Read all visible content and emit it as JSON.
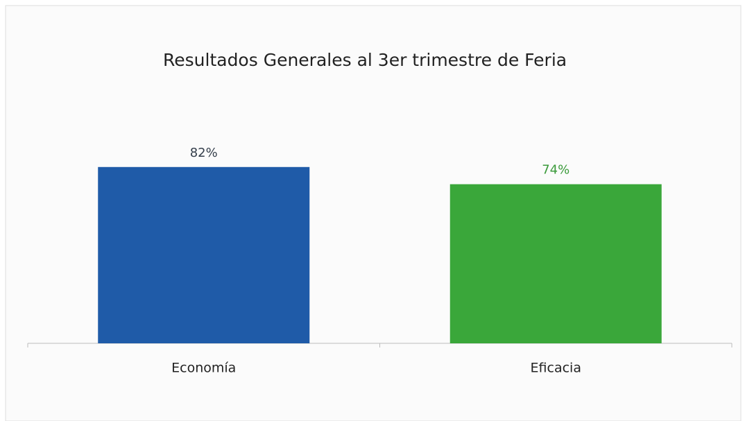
{
  "chart_data": {
    "type": "bar",
    "title": "Resultados Generales al 3er trimestre de Feria",
    "categories": [
      "Economía",
      "Eficacia"
    ],
    "values": [
      82,
      74
    ],
    "value_labels": [
      "82%",
      "74%"
    ],
    "colors": [
      "#1f5ba8",
      "#3aa73a"
    ],
    "value_label_colors": [
      "#333d4a",
      "#3a9a3a"
    ]
  }
}
